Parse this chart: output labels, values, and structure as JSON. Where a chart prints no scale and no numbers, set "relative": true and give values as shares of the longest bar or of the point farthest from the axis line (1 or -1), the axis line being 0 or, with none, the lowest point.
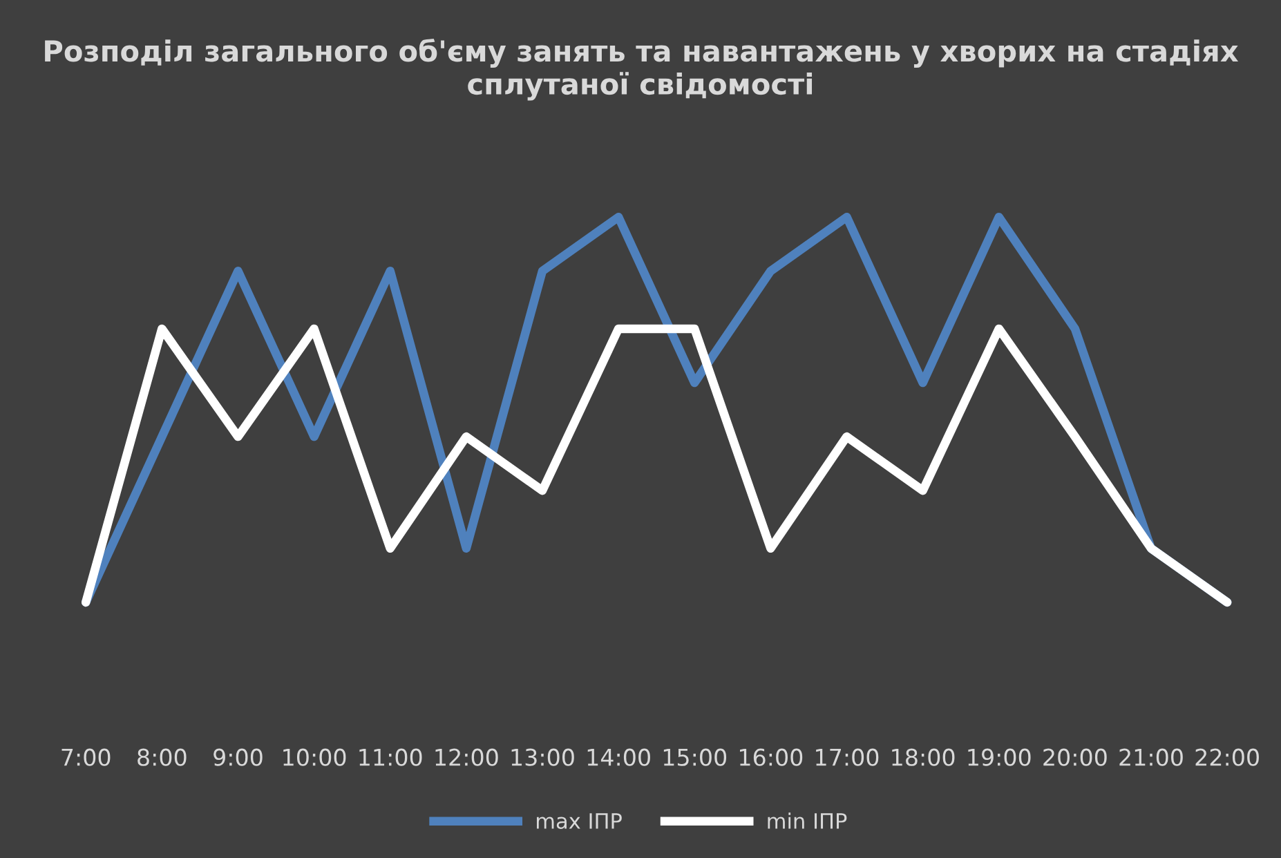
{
  "chart_data": {
    "type": "line",
    "title": "Розподіл загального об'єму занять та навантажень у хворих на стадіях сплутаної свідомості",
    "categories": [
      "7:00",
      "8:00",
      "9:00",
      "10:00",
      "11:00",
      "12:00",
      "13:00",
      "14:00",
      "15:00",
      "16:00",
      "17:00",
      "18:00",
      "19:00",
      "20:00",
      "21:00",
      "22:00"
    ],
    "relative": true,
    "series": [
      {
        "name": "max ІПР",
        "color": "#4f81bd",
        "values": [
          0,
          0.43,
          0.86,
          0.43,
          0.86,
          0.14,
          0.86,
          1,
          0.57,
          0.86,
          1,
          0.57,
          1,
          0.71,
          0.14,
          0
        ]
      },
      {
        "name": "min ІПР",
        "color": "#ffffff",
        "values": [
          0,
          0.71,
          0.43,
          0.71,
          0.14,
          0.43,
          0.29,
          0.71,
          0.71,
          0.14,
          0.43,
          0.29,
          0.71,
          0.43,
          0.14,
          0
        ]
      }
    ],
    "legend": "bottom",
    "grid": false,
    "marker": "none",
    "line_style": "solid"
  }
}
